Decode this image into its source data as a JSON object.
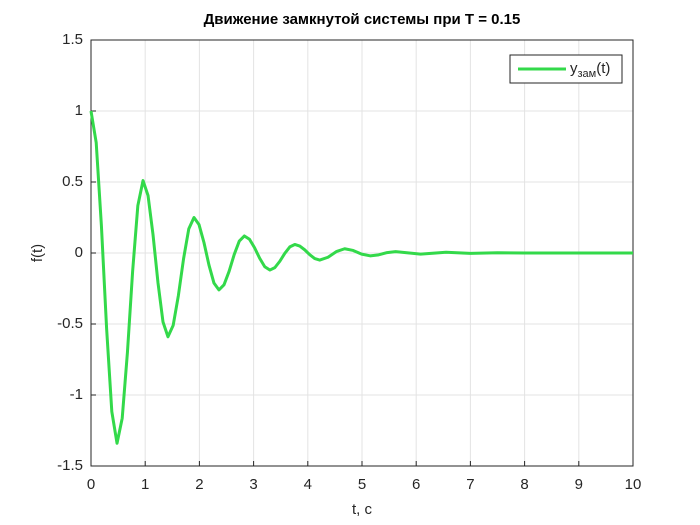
{
  "chart_data": {
    "type": "line",
    "title": "Движение замкнутой системы при T = 0.15",
    "x_label": "t, c",
    "y_label": "f(t)",
    "xlim": [
      0,
      10
    ],
    "ylim": [
      -1.5,
      1.5
    ],
    "xticks": [
      0,
      1,
      2,
      3,
      4,
      5,
      6,
      7,
      8,
      9,
      10
    ],
    "yticks": [
      -1.5,
      -1,
      -0.5,
      0,
      0.5,
      1,
      1.5
    ],
    "grid": true,
    "legend_position": "northeast",
    "series": [
      {
        "name": "yзам(t)",
        "color": "#33d94a",
        "x": [
          0,
          0.096,
          0.192,
          0.288,
          0.384,
          0.48,
          0.576,
          0.672,
          0.768,
          0.864,
          0.96,
          1.052,
          1.144,
          1.236,
          1.328,
          1.42,
          1.516,
          1.612,
          1.708,
          1.804,
          1.9,
          1.992,
          2.084,
          2.176,
          2.268,
          2.36,
          2.454,
          2.548,
          2.642,
          2.736,
          2.83,
          2.924,
          3.018,
          3.112,
          3.206,
          3.3,
          3.392,
          3.484,
          3.576,
          3.668,
          3.76,
          3.852,
          3.944,
          4.036,
          4.128,
          4.22,
          4.373,
          4.527,
          4.68,
          4.837,
          4.993,
          5.15,
          5.307,
          5.463,
          5.62,
          6.08,
          6.55,
          7,
          7.5,
          8,
          10
        ],
        "values": [
          1,
          0.777,
          0.192,
          -0.532,
          -1.117,
          -1.34,
          -1.163,
          -0.701,
          -0.129,
          0.333,
          0.51,
          0.405,
          0.13,
          -0.21,
          -0.485,
          -0.59,
          -0.51,
          -0.3,
          -0.04,
          0.17,
          0.25,
          0.201,
          0.074,
          -0.084,
          -0.211,
          -0.26,
          -0.224,
          -0.129,
          -0.011,
          0.084,
          0.12,
          0.097,
          0.037,
          -0.037,
          -0.097,
          -0.12,
          -0.103,
          -0.058,
          -0.002,
          0.043,
          0.06,
          0.049,
          0.022,
          -0.012,
          -0.039,
          -0.05,
          -0.03,
          0.01,
          0.03,
          0.018,
          -0.008,
          -0.02,
          -0.013,
          0.003,
          0.01,
          -0.008,
          0.005,
          -0.003,
          0.002,
          0,
          0
        ]
      }
    ]
  }
}
